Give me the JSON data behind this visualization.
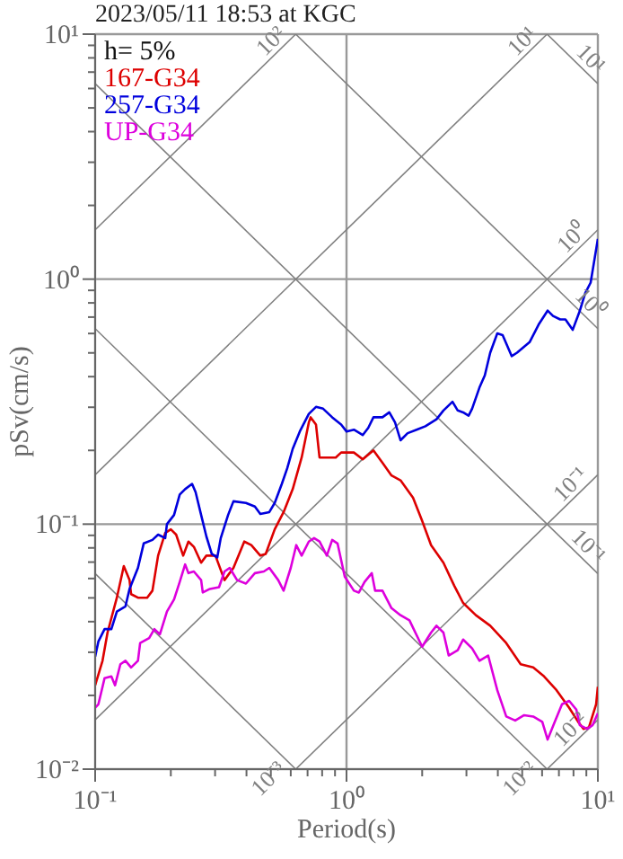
{
  "chart_data": {
    "type": "line",
    "title": "2023/05/11 18:53 at KGC",
    "xlabel": "Period(s)",
    "ylabel": "pSv(cm/s)",
    "log": "xy",
    "grid": true,
    "legend": "top left",
    "xlim": [
      0.1,
      10
    ],
    "ylim": [
      0.01,
      10
    ],
    "xticks": [
      {
        "value": 0.1,
        "label": "10⁻¹"
      },
      {
        "value": 0.2,
        "label": null
      },
      {
        "value": 0.3,
        "label": null
      },
      {
        "value": 0.4,
        "label": null
      },
      {
        "value": 0.5,
        "label": null
      },
      {
        "value": 0.6,
        "label": null
      },
      {
        "value": 0.7,
        "label": null
      },
      {
        "value": 0.8,
        "label": null
      },
      {
        "value": 0.9,
        "label": null
      },
      {
        "value": 1,
        "label": "10⁰"
      },
      {
        "value": 2,
        "label": null
      },
      {
        "value": 3,
        "label": null
      },
      {
        "value": 4,
        "label": null
      },
      {
        "value": 5,
        "label": null
      },
      {
        "value": 6,
        "label": null
      },
      {
        "value": 7,
        "label": null
      },
      {
        "value": 8,
        "label": null
      },
      {
        "value": 9,
        "label": null
      },
      {
        "value": 10,
        "label": "10¹"
      }
    ],
    "yticks": [
      {
        "value": 0.01,
        "label": "10⁻²"
      },
      {
        "value": 0.02,
        "label": null
      },
      {
        "value": 0.03,
        "label": null
      },
      {
        "value": 0.04,
        "label": null
      },
      {
        "value": 0.05,
        "label": null
      },
      {
        "value": 0.06,
        "label": null
      },
      {
        "value": 0.07,
        "label": null
      },
      {
        "value": 0.08,
        "label": null
      },
      {
        "value": 0.09,
        "label": null
      },
      {
        "value": 0.1,
        "label": "10⁻¹"
      },
      {
        "value": 0.2,
        "label": null
      },
      {
        "value": 0.3,
        "label": null
      },
      {
        "value": 0.4,
        "label": null
      },
      {
        "value": 0.5,
        "label": null
      },
      {
        "value": 0.6,
        "label": null
      },
      {
        "value": 0.7,
        "label": null
      },
      {
        "value": 0.8,
        "label": null
      },
      {
        "value": 0.9,
        "label": null
      },
      {
        "value": 1,
        "label": "10⁰"
      },
      {
        "value": 2,
        "label": null
      },
      {
        "value": 3,
        "label": null
      },
      {
        "value": 4,
        "label": null
      },
      {
        "value": 5,
        "label": null
      },
      {
        "value": 6,
        "label": null
      },
      {
        "value": 7,
        "label": null
      },
      {
        "value": 8,
        "label": null
      },
      {
        "value": 9,
        "label": null
      },
      {
        "value": 10,
        "label": "10¹"
      }
    ],
    "annotations": [
      "h= 5%",
      {
        "text": "10²",
        "x": 0.628,
        "y": 10
      },
      {
        "text": "10¹",
        "x": 6.28,
        "y": 10
      },
      {
        "text": "10¹",
        "x": 10,
        "y": 6.28
      },
      {
        "text": "10⁰",
        "x": 10,
        "y": 1.59
      },
      {
        "text": "10⁰",
        "x": 10,
        "y": 0.628
      },
      {
        "text": "10⁻¹",
        "x": 10,
        "y": 0.159
      },
      {
        "text": "10⁻¹",
        "x": 10,
        "y": 0.0628
      },
      {
        "text": "10⁻²",
        "x": 10,
        "y": 0.0159
      },
      {
        "text": "10⁻²",
        "x": 6.28,
        "y": 0.01
      },
      {
        "text": "10⁻³",
        "x": 0.628,
        "y": 0.01
      }
    ],
    "series": [
      {
        "type": "line",
        "color": "#808080",
        "x": [
          0.1,
          0.628
        ],
        "values": [
          1.59,
          10
        ]
      },
      {
        "type": "line",
        "color": "#808080",
        "x": [
          0.1,
          6.28
        ],
        "values": [
          0.159,
          10
        ]
      },
      {
        "type": "line",
        "color": "#808080",
        "x": [
          0.1,
          10
        ],
        "values": [
          0.0159,
          1.59
        ]
      },
      {
        "type": "line",
        "color": "#808080",
        "x": [
          0.628,
          10
        ],
        "values": [
          0.01,
          0.159
        ]
      },
      {
        "type": "line",
        "color": "#808080",
        "x": [
          6.28,
          10
        ],
        "values": [
          0.01,
          0.0159
        ]
      },
      {
        "type": "line",
        "color": "#808080",
        "x": [
          6.28,
          10
        ],
        "values": [
          10,
          6.28
        ]
      },
      {
        "type": "line",
        "color": "#808080",
        "x": [
          0.628,
          10
        ],
        "values": [
          10,
          0.628
        ]
      },
      {
        "type": "line",
        "color": "#808080",
        "x": [
          0.1,
          10
        ],
        "values": [
          6.28,
          0.0628
        ]
      },
      {
        "type": "line",
        "color": "#808080",
        "x": [
          0.1,
          6.28
        ],
        "values": [
          0.628,
          0.01
        ]
      },
      {
        "type": "line",
        "color": "#808080",
        "x": [
          0.1,
          0.628
        ],
        "values": [
          0.0628,
          0.01
        ]
      },
      {
        "type": "line",
        "name": "167-G34",
        "color": "#dd0000",
        "x": [
          0.1,
          0.107,
          0.112,
          0.122,
          0.13,
          0.137,
          0.139,
          0.148,
          0.161,
          0.169,
          0.178,
          0.19,
          0.2,
          0.21,
          0.224,
          0.235,
          0.247,
          0.264,
          0.277,
          0.301,
          0.327,
          0.355,
          0.392,
          0.418,
          0.454,
          0.477,
          0.518,
          0.562,
          0.611,
          0.663,
          0.708,
          0.72,
          0.756,
          0.781,
          0.848,
          0.906,
          0.952,
          1.07,
          1.16,
          1.28,
          1.39,
          1.51,
          1.64,
          1.84,
          2.0,
          2.17,
          2.43,
          2.68,
          2.91,
          3.27,
          3.73,
          4.32,
          4.93,
          5.53,
          6.11,
          6.85,
          7.69,
          8.35,
          8.77,
          9.21,
          9.84,
          10
        ],
        "values": [
          0.022,
          0.0277,
          0.0361,
          0.0501,
          0.0674,
          0.0591,
          0.0518,
          0.0501,
          0.0501,
          0.0535,
          0.0744,
          0.0921,
          0.0952,
          0.0906,
          0.0744,
          0.0849,
          0.0808,
          0.0696,
          0.0744,
          0.0744,
          0.0591,
          0.0663,
          0.0849,
          0.0821,
          0.0744,
          0.0756,
          0.0952,
          0.112,
          0.139,
          0.187,
          0.26,
          0.273,
          0.255,
          0.187,
          0.187,
          0.187,
          0.196,
          0.196,
          0.184,
          0.2,
          0.178,
          0.158,
          0.151,
          0.128,
          0.103,
          0.0821,
          0.0696,
          0.0562,
          0.0477,
          0.0425,
          0.0385,
          0.0327,
          0.0268,
          0.026,
          0.0239,
          0.021,
          0.0178,
          0.0156,
          0.0146,
          0.0148,
          0.0184,
          0.0217
        ]
      },
      {
        "type": "line",
        "name": "257-G34",
        "color": "#0000dd",
        "x": [
          0.1,
          0.103,
          0.109,
          0.116,
          0.122,
          0.132,
          0.137,
          0.148,
          0.156,
          0.169,
          0.178,
          0.19,
          0.193,
          0.206,
          0.217,
          0.228,
          0.243,
          0.251,
          0.264,
          0.277,
          0.291,
          0.306,
          0.316,
          0.338,
          0.355,
          0.398,
          0.432,
          0.454,
          0.493,
          0.518,
          0.553,
          0.581,
          0.611,
          0.652,
          0.708,
          0.756,
          0.807,
          0.877,
          0.952,
          1.0,
          1.07,
          1.16,
          1.22,
          1.28,
          1.39,
          1.48,
          1.56,
          1.64,
          1.75,
          1.9,
          2.06,
          2.28,
          2.43,
          2.64,
          2.77,
          2.91,
          3.06,
          3.16,
          3.38,
          3.55,
          3.73,
          3.98,
          4.18,
          4.54,
          4.77,
          5.35,
          5.81,
          6.31,
          6.63,
          7.08,
          7.43,
          7.94,
          8.48,
          8.91,
          9.36,
          10
        ],
        "values": [
          0.0288,
          0.0332,
          0.0373,
          0.0373,
          0.044,
          0.0462,
          0.0544,
          0.0663,
          0.0834,
          0.0862,
          0.0906,
          0.0877,
          0.1,
          0.109,
          0.132,
          0.139,
          0.146,
          0.135,
          0.109,
          0.0891,
          0.0756,
          0.0731,
          0.0877,
          0.109,
          0.124,
          0.122,
          0.118,
          0.11,
          0.112,
          0.122,
          0.146,
          0.169,
          0.203,
          0.239,
          0.282,
          0.301,
          0.296,
          0.273,
          0.255,
          0.239,
          0.243,
          0.231,
          0.247,
          0.273,
          0.273,
          0.286,
          0.26,
          0.22,
          0.235,
          0.243,
          0.251,
          0.268,
          0.291,
          0.316,
          0.291,
          0.286,
          0.277,
          0.296,
          0.361,
          0.405,
          0.501,
          0.601,
          0.591,
          0.485,
          0.501,
          0.553,
          0.652,
          0.744,
          0.708,
          0.685,
          0.685,
          0.621,
          0.744,
          0.877,
          0.968,
          1.46
        ]
      },
      {
        "type": "line",
        "name": "UP-G34",
        "color": "#dd00dd",
        "x": [
          0.1,
          0.103,
          0.109,
          0.116,
          0.12,
          0.126,
          0.132,
          0.139,
          0.148,
          0.151,
          0.164,
          0.172,
          0.181,
          0.193,
          0.206,
          0.217,
          0.228,
          0.235,
          0.247,
          0.264,
          0.268,
          0.286,
          0.311,
          0.327,
          0.343,
          0.367,
          0.398,
          0.432,
          0.469,
          0.493,
          0.535,
          0.562,
          0.6,
          0.631,
          0.663,
          0.708,
          0.743,
          0.781,
          0.835,
          0.877,
          0.921,
          0.984,
          1.07,
          1.12,
          1.18,
          1.26,
          1.3,
          1.39,
          1.51,
          1.64,
          1.78,
          2.0,
          2.17,
          2.28,
          2.43,
          2.55,
          2.77,
          2.91,
          3.16,
          3.38,
          3.66,
          3.98,
          4.32,
          4.69,
          5.09,
          5.53,
          6.01,
          6.31,
          6.74,
          7.2,
          7.69,
          8.21,
          8.48,
          9.06,
          9.52,
          10
        ],
        "values": [
          0.0178,
          0.0184,
          0.0235,
          0.0239,
          0.022,
          0.0268,
          0.0277,
          0.026,
          0.0277,
          0.0327,
          0.0343,
          0.0373,
          0.0355,
          0.044,
          0.0493,
          0.0581,
          0.0685,
          0.0631,
          0.0641,
          0.0591,
          0.0526,
          0.0544,
          0.0553,
          0.0641,
          0.0663,
          0.0591,
          0.0572,
          0.0631,
          0.0641,
          0.0663,
          0.0591,
          0.0535,
          0.0663,
          0.0821,
          0.0744,
          0.0849,
          0.0877,
          0.0849,
          0.0744,
          0.0862,
          0.0834,
          0.0611,
          0.0535,
          0.0526,
          0.0581,
          0.0631,
          0.0535,
          0.0535,
          0.0454,
          0.0425,
          0.0405,
          0.0316,
          0.0361,
          0.0385,
          0.0361,
          0.0291,
          0.0306,
          0.0338,
          0.0311,
          0.0277,
          0.0291,
          0.021,
          0.0164,
          0.0158,
          0.0166,
          0.0164,
          0.0156,
          0.0132,
          0.0156,
          0.0184,
          0.019,
          0.0175,
          0.0151,
          0.0146,
          0.0151,
          0.0169
        ]
      }
    ]
  }
}
